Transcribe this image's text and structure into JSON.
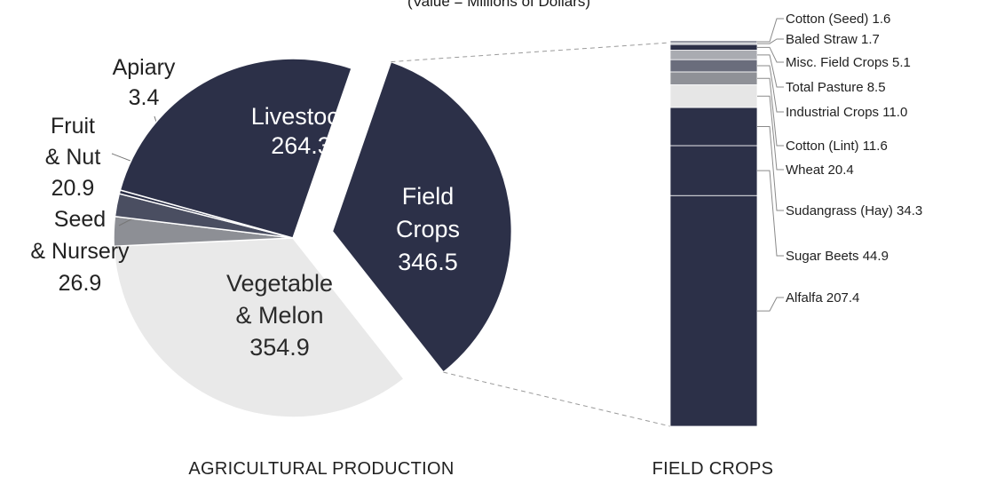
{
  "chart_data": [
    {
      "type": "pie",
      "subtitle": "(Value = Millions of Dollars)",
      "caption": "AGRICULTURAL PRODUCTION",
      "slices": [
        {
          "key": "livestock",
          "label": [
            "Livestock",
            "264.3"
          ],
          "value": 264.3,
          "color": "#2c3048",
          "text_color": "#ffffff"
        },
        {
          "key": "field",
          "label": [
            "Field",
            "Crops",
            "346.5"
          ],
          "value": 346.5,
          "color": "#2c3048",
          "text_color": "#ffffff",
          "exploded": true
        },
        {
          "key": "vegetable",
          "label": [
            "Vegetable",
            "& Melon",
            "354.9"
          ],
          "value": 354.9,
          "color": "#e9e9e9",
          "text_color": "#2a2a2a"
        },
        {
          "key": "seed",
          "label": [
            "Seed",
            "& Nursery",
            "26.9"
          ],
          "value": 26.9,
          "color": "#8d8f95",
          "text_color": "#2a2a2a"
        },
        {
          "key": "fruit",
          "label": [
            "Fruit",
            "& Nut",
            "20.9"
          ],
          "value": 20.9,
          "color": "#4a4e61",
          "text_color": "#2a2a2a"
        },
        {
          "key": "apiary",
          "label": [
            "Apiary",
            "3.4"
          ],
          "value": 3.4,
          "color": "#2c3048",
          "text_color": "#2a2a2a"
        }
      ]
    },
    {
      "type": "bar",
      "stacked": true,
      "caption": "FIELD CROPS",
      "total": 346.5,
      "segments": [
        {
          "label": "Alfalfa 207.4",
          "value": 207.4,
          "color": "#2c3048"
        },
        {
          "label": "Sugar Beets 44.9",
          "value": 44.9,
          "color": "#2c3048"
        },
        {
          "label": "Sudangrass (Hay) 34.3",
          "value": 34.3,
          "color": "#2c3048"
        },
        {
          "label": "Wheat 20.4",
          "value": 20.4,
          "color": "#e6e6e6"
        },
        {
          "label": "Cotton (Lint) 11.6",
          "value": 11.6,
          "color": "#8f9197"
        },
        {
          "label": "Industrial Crops 11.0",
          "value": 11.0,
          "color": "#6a6d7c"
        },
        {
          "label": "Total Pasture 8.5",
          "value": 8.5,
          "color": "#a9abb1"
        },
        {
          "label": "Misc. Field Crops 5.1",
          "value": 5.1,
          "color": "#2c3048"
        },
        {
          "label": "Baled Straw 1.7",
          "value": 1.7,
          "color": "#b9bbc1"
        },
        {
          "label": "Cotton (Seed) 1.6",
          "value": 1.6,
          "color": "#55586a"
        }
      ]
    }
  ]
}
